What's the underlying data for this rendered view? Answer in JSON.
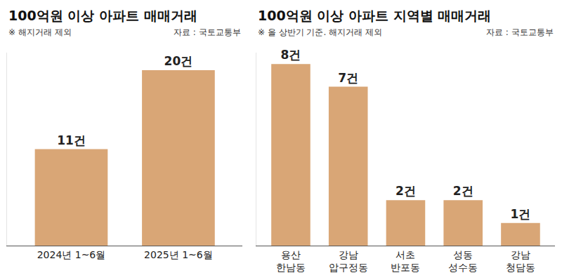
{
  "chart_data": [
    {
      "type": "bar",
      "title": "100억원 이상 아파트 매매거래",
      "annotations": [
        "※ 해지거래 제외",
        "자료 : 국토교통부"
      ],
      "categories": [
        "2024년 1~6월",
        "2025년 1~6월"
      ],
      "values": [
        11,
        20
      ],
      "value_labels": [
        "11건",
        "20건"
      ],
      "data_labels": true,
      "color": "#d9a676",
      "ylim": [
        0,
        22
      ],
      "tick_labels": "x",
      "grid": false
    },
    {
      "type": "bar",
      "title": "100억원 이상 아파트 지역별 매매거래",
      "annotations": [
        "※ 올 상반기 기준. 해지거래 제외",
        "자료 : 국토교통부"
      ],
      "categories": [
        "용산\n한남동",
        "강남\n압구정동",
        "서초\n반포동",
        "성동\n성수동",
        "강남\n청담동"
      ],
      "values": [
        8,
        7,
        2,
        2,
        1
      ],
      "value_labels": [
        "8건",
        "7건",
        "2건",
        "2건",
        "1건"
      ],
      "data_labels": true,
      "color": "#d9a676",
      "ylim": [
        0,
        8.5
      ],
      "tick_labels": "x",
      "grid": false
    }
  ]
}
